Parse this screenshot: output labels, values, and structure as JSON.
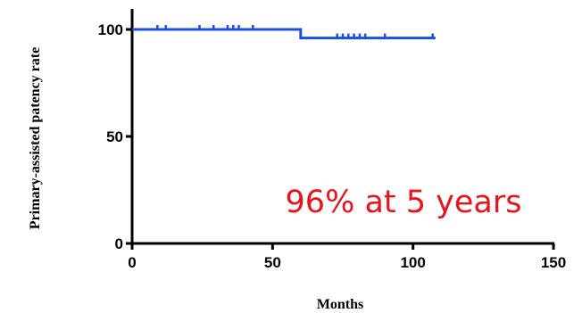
{
  "chart_data": {
    "type": "line",
    "step": true,
    "xlabel": "Months",
    "ylabel": "Primary-assisted patency rate",
    "xlim": [
      0,
      150
    ],
    "ylim": [
      0,
      100
    ],
    "x_ticks": [
      0,
      50,
      100,
      150
    ],
    "y_ticks": [
      0,
      50,
      100
    ],
    "grid": false,
    "series": [
      {
        "color": "#1f4fe0",
        "steps": [
          {
            "x": 0,
            "y": 100
          },
          {
            "x": 60,
            "y": 100
          },
          {
            "x": 60,
            "y": 96
          },
          {
            "x": 108,
            "y": 96
          }
        ],
        "censored": [
          {
            "x": 9,
            "y": 100
          },
          {
            "x": 12,
            "y": 100
          },
          {
            "x": 24,
            "y": 100
          },
          {
            "x": 29,
            "y": 100
          },
          {
            "x": 34,
            "y": 100
          },
          {
            "x": 36,
            "y": 100
          },
          {
            "x": 38,
            "y": 100
          },
          {
            "x": 43,
            "y": 100
          },
          {
            "x": 73,
            "y": 96
          },
          {
            "x": 75,
            "y": 96
          },
          {
            "x": 77,
            "y": 96
          },
          {
            "x": 79,
            "y": 96
          },
          {
            "x": 81,
            "y": 96
          },
          {
            "x": 83,
            "y": 96
          },
          {
            "x": 90,
            "y": 96
          },
          {
            "x": 107,
            "y": 96
          }
        ]
      }
    ],
    "annotation": {
      "text": "96% at 5 years",
      "color": "#e8141c"
    }
  }
}
